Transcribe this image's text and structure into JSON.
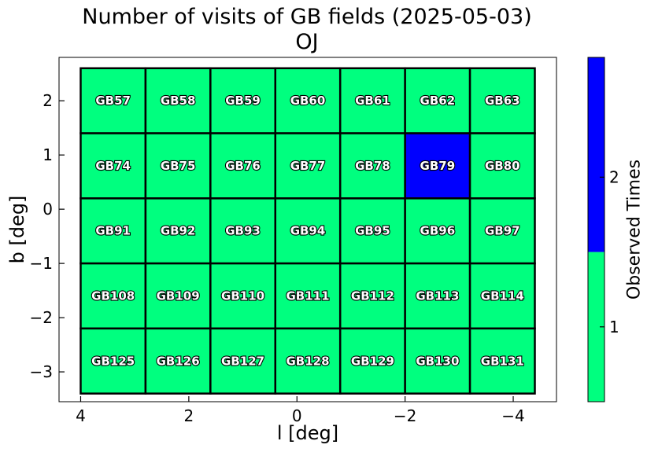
{
  "chart_data": {
    "type": "heatmap",
    "title": "Number of visits of GB fields (2025-05-03)",
    "subtitle": "OJ",
    "xlabel": "l [deg]",
    "ylabel": "b [deg]",
    "xlim": [
      4.4,
      -4.8
    ],
    "ylim": [
      -3.55,
      2.8
    ],
    "x_ticks": [
      4,
      2,
      0,
      -2,
      -4
    ],
    "x_tick_labels": [
      "4",
      "2",
      "0",
      "−2",
      "−4"
    ],
    "y_ticks": [
      2,
      1,
      0,
      -1,
      -2,
      -3
    ],
    "y_tick_labels": [
      "2",
      "1",
      "0",
      "−1",
      "−2",
      "−3"
    ],
    "grid": false,
    "colorbar": {
      "label": "Observed Times",
      "range": [
        0.5,
        2.8
      ],
      "ticks": [
        1,
        2
      ],
      "tick_labels": [
        "1",
        "2"
      ],
      "levels": [
        {
          "value": 1,
          "color": "#00ff7f"
        },
        {
          "value": 2,
          "color": "#0000ff"
        }
      ]
    },
    "column_l_centers": [
      3.4,
      2.2,
      1.0,
      -0.2,
      -1.4,
      -2.6,
      -3.8
    ],
    "row_b_centers": [
      2.0,
      0.8,
      -0.4,
      -1.6,
      -2.8
    ],
    "cell_width_deg": 1.2,
    "cell_height_deg": 1.2,
    "rows": [
      [
        {
          "name": "GB57",
          "visits": 1
        },
        {
          "name": "GB58",
          "visits": 1
        },
        {
          "name": "GB59",
          "visits": 1
        },
        {
          "name": "GB60",
          "visits": 1
        },
        {
          "name": "GB61",
          "visits": 1
        },
        {
          "name": "GB62",
          "visits": 1
        },
        {
          "name": "GB63",
          "visits": 1
        }
      ],
      [
        {
          "name": "GB74",
          "visits": 1
        },
        {
          "name": "GB75",
          "visits": 1
        },
        {
          "name": "GB76",
          "visits": 1
        },
        {
          "name": "GB77",
          "visits": 1
        },
        {
          "name": "GB78",
          "visits": 1
        },
        {
          "name": "GB79",
          "visits": 2
        },
        {
          "name": "GB80",
          "visits": 1
        }
      ],
      [
        {
          "name": "GB91",
          "visits": 1
        },
        {
          "name": "GB92",
          "visits": 1
        },
        {
          "name": "GB93",
          "visits": 1
        },
        {
          "name": "GB94",
          "visits": 1
        },
        {
          "name": "GB95",
          "visits": 1
        },
        {
          "name": "GB96",
          "visits": 1
        },
        {
          "name": "GB97",
          "visits": 1
        }
      ],
      [
        {
          "name": "GB108",
          "visits": 1
        },
        {
          "name": "GB109",
          "visits": 1
        },
        {
          "name": "GB110",
          "visits": 1
        },
        {
          "name": "GB111",
          "visits": 1
        },
        {
          "name": "GB112",
          "visits": 1
        },
        {
          "name": "GB113",
          "visits": 1
        },
        {
          "name": "GB114",
          "visits": 1
        }
      ],
      [
        {
          "name": "GB125",
          "visits": 1
        },
        {
          "name": "GB126",
          "visits": 1
        },
        {
          "name": "GB127",
          "visits": 1
        },
        {
          "name": "GB128",
          "visits": 1
        },
        {
          "name": "GB129",
          "visits": 1
        },
        {
          "name": "GB130",
          "visits": 1
        },
        {
          "name": "GB131",
          "visits": 1
        }
      ]
    ]
  }
}
